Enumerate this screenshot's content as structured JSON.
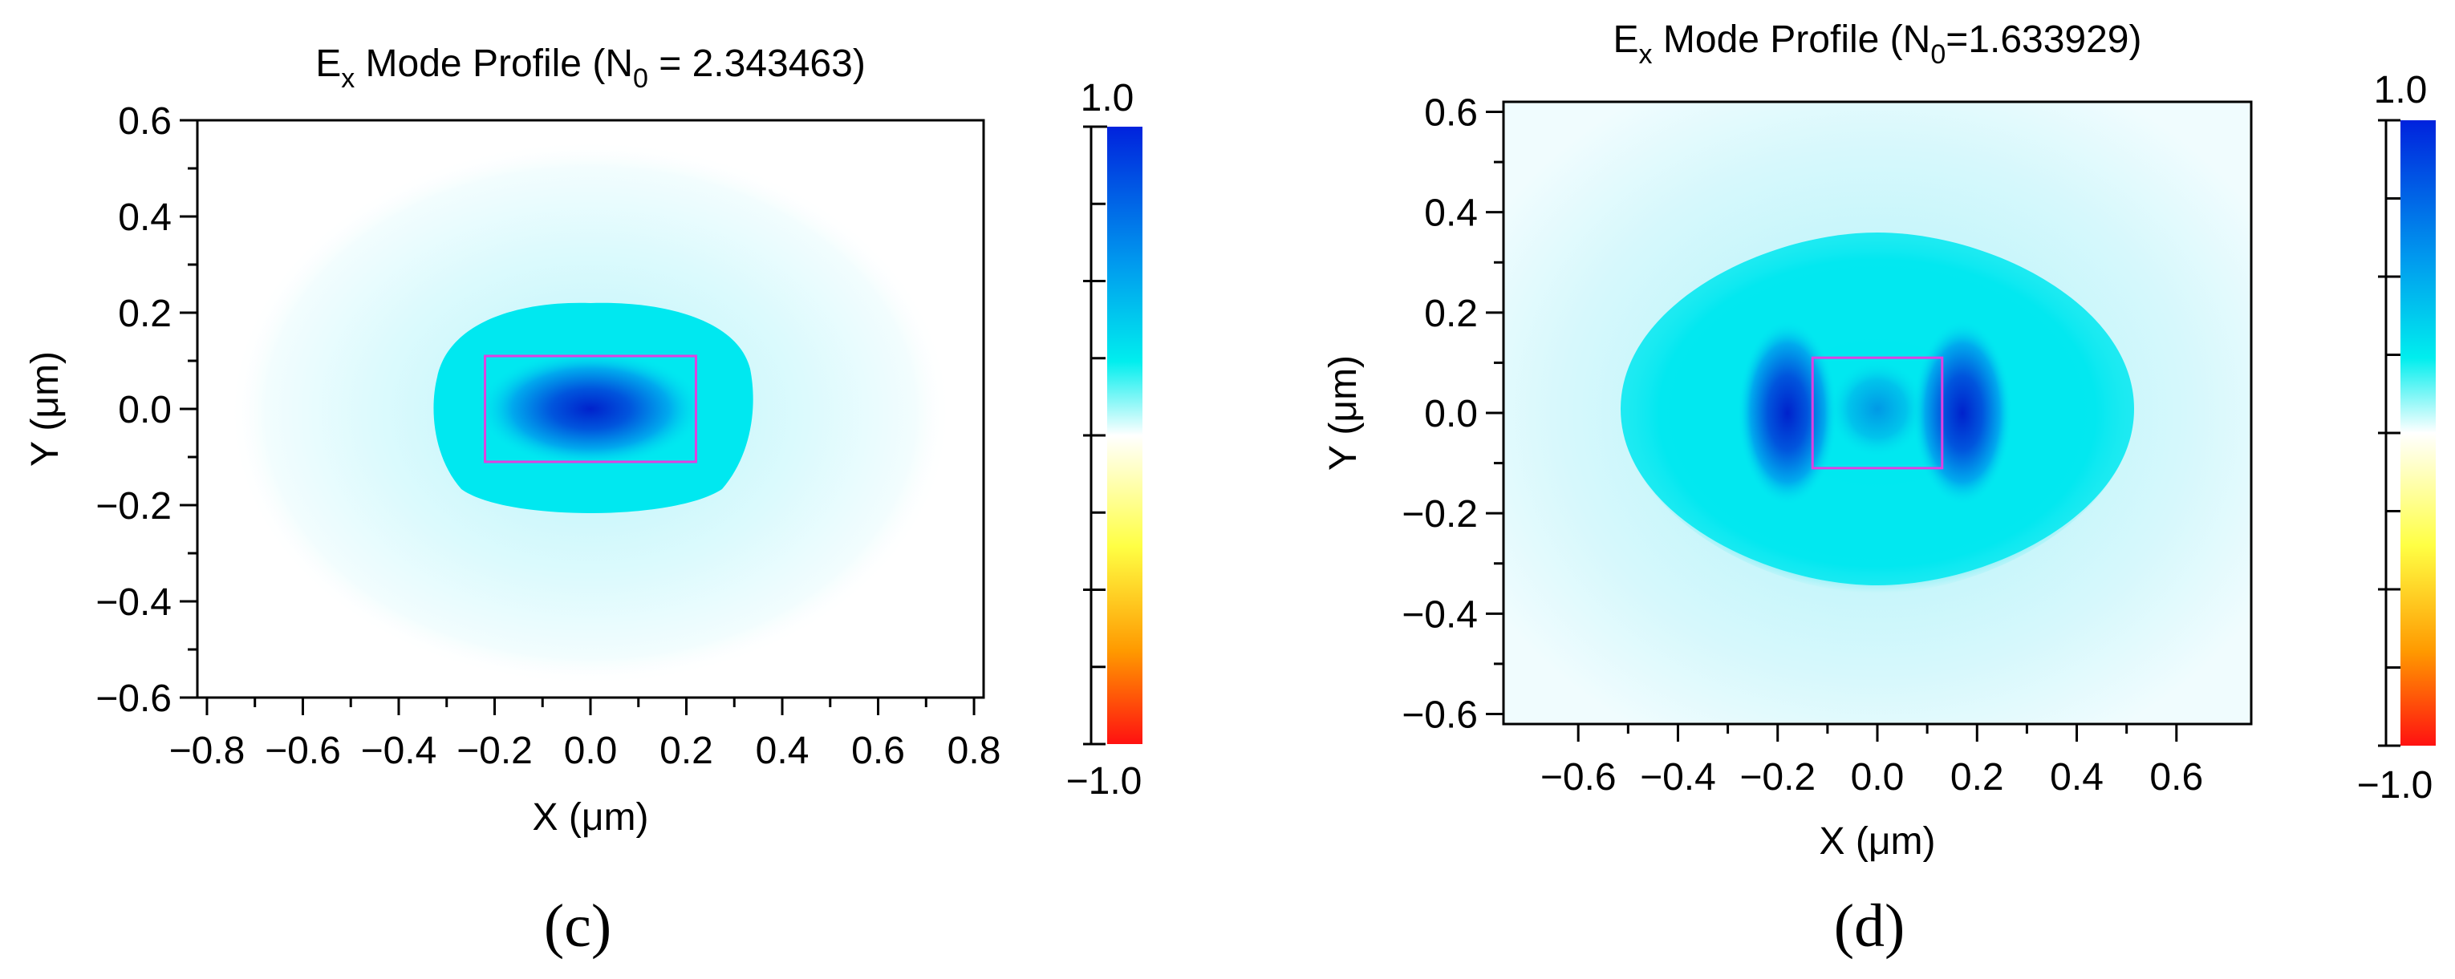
{
  "chart_data": [
    {
      "type": "heatmap",
      "panel": "(c)",
      "title": "Ex Mode Profile (N0 = 2.343463)",
      "title_parts": {
        "main": "E",
        "sub": "x",
        "rest": " Mode Profile (N",
        "sub2": "0",
        "end": " = 2.343463)"
      },
      "xlabel": "X (μm)",
      "ylabel": "Y (μm)",
      "xlim": [
        -0.82,
        0.82
      ],
      "ylim": [
        -0.6,
        0.6
      ],
      "xticks": [
        "−0.8",
        "−0.6",
        "−0.4",
        "−0.2",
        "0.0",
        "0.2",
        "0.4",
        "0.6",
        "0.8"
      ],
      "xtick_values": [
        -0.8,
        -0.6,
        -0.4,
        -0.2,
        0.0,
        0.2,
        0.4,
        0.6,
        0.8
      ],
      "yticks": [
        "0.6",
        "0.4",
        "0.2",
        "0.0",
        "−0.2",
        "−0.4",
        "−0.6"
      ],
      "ytick_values": [
        0.6,
        0.4,
        0.2,
        0.0,
        -0.2,
        -0.4,
        -0.6
      ],
      "waveguide_core": {
        "x": [
          -0.22,
          0.22
        ],
        "y": [
          -0.11,
          0.11
        ],
        "color": "#e040e0"
      },
      "field": {
        "peak_x": 0.0,
        "peak_y": 0.0,
        "peak_value": 1.0,
        "profile": "single central lobe"
      },
      "colorbar": {
        "max_label": "1.0",
        "min_label": "−1.0",
        "range": [
          -1.0,
          1.0
        ]
      }
    },
    {
      "type": "heatmap",
      "panel": "(d)",
      "title": "Ex Mode Profile (N0=1.633929)",
      "title_parts": {
        "main": "E",
        "sub": "x",
        "rest": " Mode Profile (N",
        "sub2": "0",
        "end": "=1.633929)"
      },
      "xlabel": "X (μm)",
      "ylabel": "Y (μm)",
      "xlim": [
        -0.75,
        0.75
      ],
      "ylim": [
        -0.62,
        0.62
      ],
      "xticks": [
        "−0.6",
        "−0.4",
        "−0.2",
        "0.0",
        "0.2",
        "0.4",
        "0.6"
      ],
      "xtick_values": [
        -0.6,
        -0.4,
        -0.2,
        0.0,
        0.2,
        0.4,
        0.6
      ],
      "yticks": [
        "0.6",
        "0.4",
        "0.2",
        "0.0",
        "−0.2",
        "−0.4",
        "−0.6"
      ],
      "ytick_values": [
        0.6,
        0.4,
        0.2,
        0.0,
        -0.2,
        -0.4,
        -0.6
      ],
      "waveguide_core": {
        "x": [
          -0.13,
          0.13
        ],
        "y": [
          -0.11,
          0.11
        ],
        "color": "#e040e0"
      },
      "field": {
        "lobes_x": [
          -0.18,
          0.18
        ],
        "center_value": 0.7,
        "profile": "two side lobes at core edges"
      },
      "colorbar": {
        "max_label": "1.0",
        "min_label": "−1.0",
        "range": [
          -1.0,
          1.0
        ]
      }
    }
  ],
  "colors": {
    "max": "#0033dd",
    "mid_high": "#00e5ee",
    "zero": "#ffffff",
    "mid_low": "#ffee00",
    "min": "#ff1111"
  }
}
